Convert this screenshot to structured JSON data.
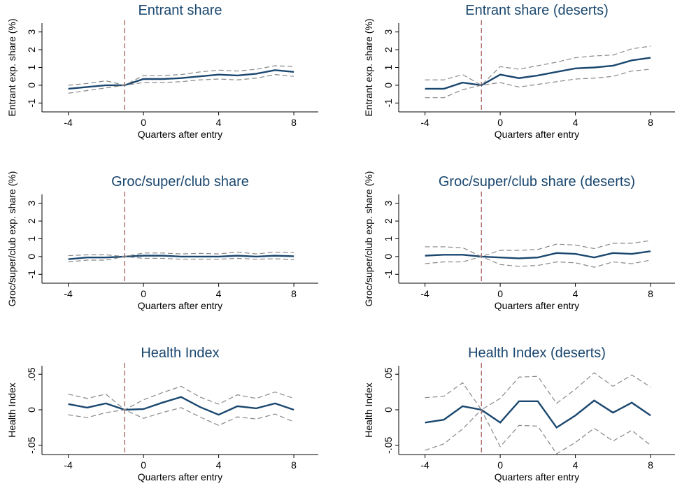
{
  "chart_data": [
    {
      "type": "line",
      "title": "Entrant share",
      "xlabel": "Quarters after entry",
      "ylabel": "Entrant exp. share (%)",
      "x": [
        -4,
        -3,
        -2,
        -1,
        0,
        1,
        2,
        3,
        4,
        5,
        6,
        7,
        8
      ],
      "xlim": [
        -5.4,
        9.3
      ],
      "xticks": [
        -4,
        0,
        4,
        8
      ],
      "ylim": [
        -1.5,
        3.5
      ],
      "yticks": [
        -1,
        0,
        1,
        2,
        3
      ],
      "vline": -1,
      "vline_color": "#a0524d",
      "series": [
        {
          "color": "#1a476f",
          "dashed": false,
          "values": [
            -0.2,
            -0.1,
            0.0,
            0,
            0.35,
            0.35,
            0.4,
            0.5,
            0.6,
            0.55,
            0.65,
            0.85,
            0.75
          ]
        },
        {
          "color": "#888888",
          "dashed": true,
          "values": [
            0.0,
            0.1,
            0.25,
            0,
            0.55,
            0.55,
            0.6,
            0.75,
            0.85,
            0.8,
            0.9,
            1.1,
            1.05
          ]
        },
        {
          "color": "#888888",
          "dashed": true,
          "values": [
            -0.45,
            -0.3,
            -0.15,
            0,
            0.15,
            0.15,
            0.2,
            0.3,
            0.35,
            0.3,
            0.4,
            0.6,
            0.5
          ]
        }
      ]
    },
    {
      "type": "line",
      "title": "Entrant share (deserts)",
      "xlabel": "Quarters after entry",
      "ylabel": "Entrant exp. share (%)",
      "x": [
        -4,
        -3,
        -2,
        -1,
        0,
        1,
        2,
        3,
        4,
        5,
        6,
        7,
        8
      ],
      "xlim": [
        -5.4,
        9.3
      ],
      "xticks": [
        -4,
        0,
        4,
        8
      ],
      "ylim": [
        -1.5,
        3.5
      ],
      "yticks": [
        -1,
        0,
        1,
        2,
        3
      ],
      "vline": -1,
      "vline_color": "#a0524d",
      "series": [
        {
          "color": "#1a476f",
          "dashed": false,
          "values": [
            -0.2,
            -0.2,
            0.15,
            0,
            0.6,
            0.4,
            0.55,
            0.75,
            0.95,
            1.0,
            1.1,
            1.4,
            1.55
          ]
        },
        {
          "color": "#888888",
          "dashed": true,
          "values": [
            0.3,
            0.3,
            0.6,
            0,
            1.05,
            0.9,
            1.1,
            1.3,
            1.55,
            1.65,
            1.7,
            2.05,
            2.2
          ]
        },
        {
          "color": "#888888",
          "dashed": true,
          "values": [
            -0.7,
            -0.7,
            -0.25,
            0,
            0.15,
            -0.1,
            0.05,
            0.2,
            0.35,
            0.4,
            0.5,
            0.8,
            0.9
          ]
        }
      ]
    },
    {
      "type": "line",
      "title": "Groc/super/club share",
      "xlabel": "Quarters after entry",
      "ylabel": "Groc/super/club exp. share (%)",
      "x": [
        -4,
        -3,
        -2,
        -1,
        0,
        1,
        2,
        3,
        4,
        5,
        6,
        7,
        8
      ],
      "xlim": [
        -5.4,
        9.3
      ],
      "xticks": [
        -4,
        0,
        4,
        8
      ],
      "ylim": [
        -1.5,
        3.5
      ],
      "yticks": [
        -1,
        0,
        1,
        2,
        3
      ],
      "vline": -1,
      "vline_color": "#a0524d",
      "series": [
        {
          "color": "#1a476f",
          "dashed": false,
          "values": [
            -0.15,
            -0.05,
            -0.05,
            0,
            0.05,
            0.05,
            0,
            0,
            0,
            0.05,
            0,
            0.05,
            0.02
          ]
        },
        {
          "color": "#888888",
          "dashed": true,
          "values": [
            0.05,
            0.1,
            0.1,
            0,
            0.2,
            0.2,
            0.15,
            0.18,
            0.15,
            0.25,
            0.15,
            0.25,
            0.22
          ]
        },
        {
          "color": "#888888",
          "dashed": true,
          "values": [
            -0.3,
            -0.2,
            -0.2,
            0,
            -0.1,
            -0.1,
            -0.15,
            -0.15,
            -0.15,
            -0.1,
            -0.15,
            -0.12,
            -0.18
          ]
        }
      ]
    },
    {
      "type": "line",
      "title": "Groc/super/club share (deserts)",
      "xlabel": "Quarters after entry",
      "ylabel": "Groc/super/club exp. share (%)",
      "x": [
        -4,
        -3,
        -2,
        -1,
        0,
        1,
        2,
        3,
        4,
        5,
        6,
        7,
        8
      ],
      "xlim": [
        -5.4,
        9.3
      ],
      "xticks": [
        -4,
        0,
        4,
        8
      ],
      "ylim": [
        -1.5,
        3.5
      ],
      "yticks": [
        -1,
        0,
        1,
        2,
        3
      ],
      "vline": -1,
      "vline_color": "#a0524d",
      "series": [
        {
          "color": "#1a476f",
          "dashed": false,
          "values": [
            0.05,
            0.1,
            0.1,
            0,
            -0.05,
            -0.1,
            -0.05,
            0.2,
            0.15,
            -0.05,
            0.2,
            0.15,
            0.3
          ]
        },
        {
          "color": "#888888",
          "dashed": true,
          "values": [
            0.55,
            0.55,
            0.5,
            0,
            0.35,
            0.35,
            0.4,
            0.7,
            0.65,
            0.45,
            0.75,
            0.75,
            0.9
          ]
        },
        {
          "color": "#888888",
          "dashed": true,
          "values": [
            -0.4,
            -0.3,
            -0.3,
            0,
            -0.45,
            -0.55,
            -0.5,
            -0.3,
            -0.35,
            -0.6,
            -0.3,
            -0.4,
            -0.2
          ]
        }
      ]
    },
    {
      "type": "line",
      "title": "Health Index",
      "xlabel": "Quarters after entry",
      "ylabel": "Health Index",
      "x": [
        -4,
        -3,
        -2,
        -1,
        0,
        1,
        2,
        3,
        4,
        5,
        6,
        7,
        8
      ],
      "xlim": [
        -5.4,
        9.3
      ],
      "xticks": [
        -4,
        0,
        4,
        8
      ],
      "ylim": [
        -0.063,
        0.062
      ],
      "yticks": [
        {
          "value": -0.05,
          "label": "-.05"
        },
        0,
        {
          "value": 0.05,
          "label": ".05"
        }
      ],
      "vline": -1,
      "vline_color": "#a0524d",
      "series": [
        {
          "color": "#1a476f",
          "dashed": false,
          "values": [
            0.008,
            0.003,
            0.009,
            0,
            0.001,
            0.01,
            0.018,
            0.004,
            -0.007,
            0.005,
            0.002,
            0.009,
            0
          ]
        },
        {
          "color": "#888888",
          "dashed": true,
          "values": [
            0.022,
            0.016,
            0.022,
            0,
            0.014,
            0.024,
            0.033,
            0.018,
            0.008,
            0.021,
            0.016,
            0.025,
            0.016
          ]
        },
        {
          "color": "#888888",
          "dashed": true,
          "values": [
            -0.007,
            -0.011,
            -0.004,
            0,
            -0.012,
            -0.004,
            0.003,
            -0.01,
            -0.022,
            -0.01,
            -0.013,
            -0.006,
            -0.017
          ]
        }
      ]
    },
    {
      "type": "line",
      "title": "Health Index (deserts)",
      "xlabel": "Quarters after entry",
      "ylabel": "Health Index",
      "x": [
        -4,
        -3,
        -2,
        -1,
        0,
        1,
        2,
        3,
        4,
        5,
        6,
        7,
        8
      ],
      "xlim": [
        -5.4,
        9.3
      ],
      "xticks": [
        -4,
        0,
        4,
        8
      ],
      "ylim": [
        -0.063,
        0.062
      ],
      "yticks": [
        {
          "value": -0.05,
          "label": "-.05"
        },
        0,
        {
          "value": 0.05,
          "label": ".05"
        }
      ],
      "vline": -1,
      "vline_color": "#a0524d",
      "series": [
        {
          "color": "#1a476f",
          "dashed": false,
          "values": [
            -0.018,
            -0.014,
            0.005,
            0,
            -0.018,
            0.012,
            0.012,
            -0.025,
            -0.008,
            0.013,
            -0.004,
            0.01,
            -0.008
          ]
        },
        {
          "color": "#888888",
          "dashed": true,
          "values": [
            0.017,
            0.019,
            0.038,
            0,
            0.016,
            0.046,
            0.047,
            0.009,
            0.029,
            0.052,
            0.033,
            0.049,
            0.032
          ]
        },
        {
          "color": "#888888",
          "dashed": true,
          "values": [
            -0.057,
            -0.048,
            -0.027,
            0,
            -0.052,
            -0.022,
            -0.023,
            -0.062,
            -0.046,
            -0.026,
            -0.044,
            -0.029,
            -0.05
          ]
        }
      ]
    }
  ]
}
